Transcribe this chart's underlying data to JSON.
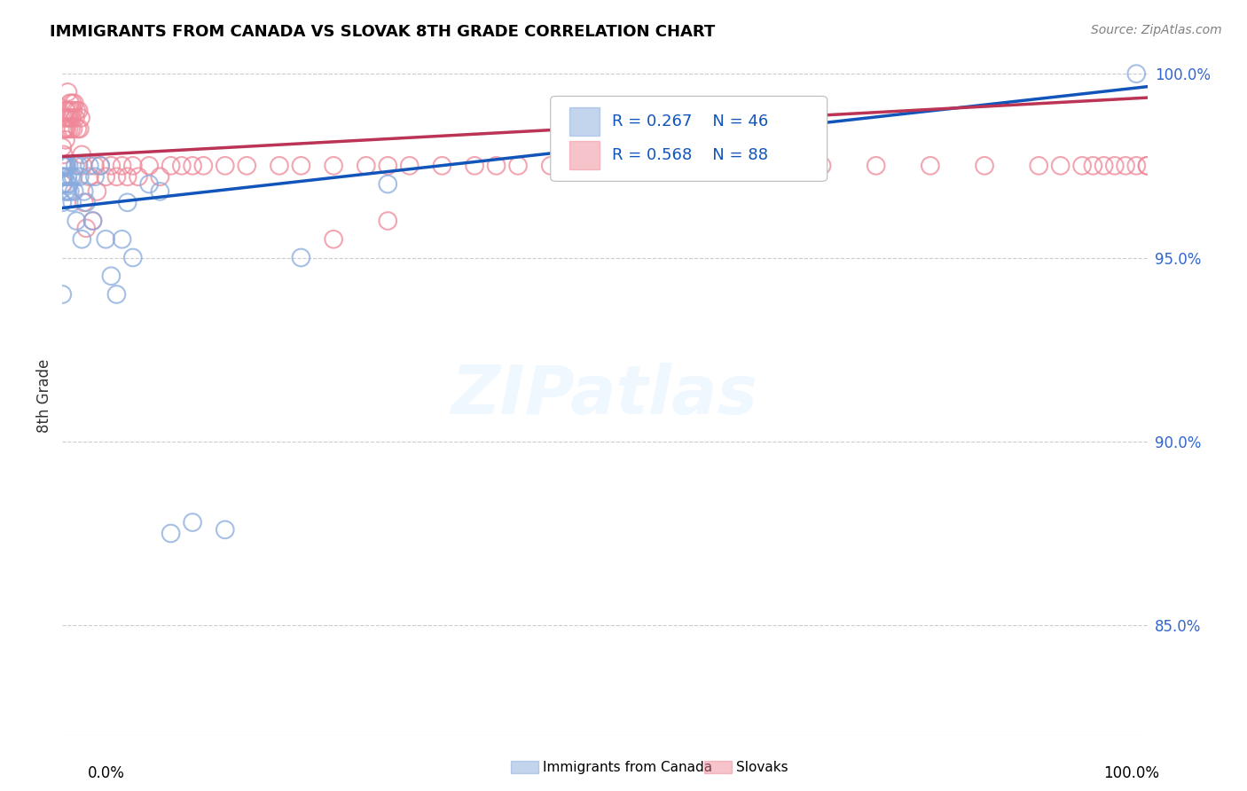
{
  "title": "IMMIGRANTS FROM CANADA VS SLOVAK 8TH GRADE CORRELATION CHART",
  "source": "Source: ZipAtlas.com",
  "ylabel": "8th Grade",
  "xlim": [
    0.0,
    1.0
  ],
  "ylim": [
    0.82,
    1.005
  ],
  "ytick_values": [
    0.85,
    0.9,
    0.95,
    1.0
  ],
  "ytick_labels": [
    "85.0%",
    "90.0%",
    "95.0%",
    "100.0%"
  ],
  "blue_R": "0.267",
  "blue_N": "46",
  "pink_R": "0.568",
  "pink_N": "88",
  "blue_color": "#88AADD",
  "pink_color": "#EE8899",
  "blue_line_color": "#1155BB",
  "pink_line_color": "#BB3355",
  "blue_line_start_y": 0.9635,
  "blue_line_end_y": 0.9965,
  "pink_line_start_y": 0.9775,
  "pink_line_end_y": 0.9935,
  "watermark_text": "ZIPatlas",
  "legend_blue_label": "Immigrants from Canada",
  "legend_pink_label": "Slovaks",
  "blue_scatter_x": [
    0.0,
    0.0,
    0.0,
    0.001,
    0.001,
    0.002,
    0.002,
    0.003,
    0.003,
    0.004,
    0.004,
    0.005,
    0.005,
    0.006,
    0.006,
    0.007,
    0.008,
    0.009,
    0.01,
    0.011,
    0.012,
    0.013,
    0.015,
    0.016,
    0.018,
    0.02,
    0.022,
    0.025,
    0.028,
    0.03,
    0.035,
    0.04,
    0.045,
    0.05,
    0.055,
    0.06,
    0.065,
    0.08,
    0.09,
    0.1,
    0.12,
    0.15,
    0.22,
    0.3,
    0.99,
    0.0
  ],
  "blue_scatter_y": [
    0.972,
    0.965,
    0.975,
    0.975,
    0.97,
    0.975,
    0.972,
    0.975,
    0.968,
    0.975,
    0.97,
    0.972,
    0.968,
    0.975,
    0.97,
    0.968,
    0.972,
    0.965,
    0.972,
    0.968,
    0.975,
    0.96,
    0.975,
    0.972,
    0.955,
    0.968,
    0.965,
    0.975,
    0.96,
    0.972,
    0.975,
    0.955,
    0.945,
    0.94,
    0.955,
    0.965,
    0.95,
    0.97,
    0.968,
    0.875,
    0.878,
    0.876,
    0.95,
    0.97,
    1.0,
    0.94
  ],
  "pink_scatter_x": [
    0.0,
    0.0,
    0.0,
    0.0,
    0.001,
    0.001,
    0.002,
    0.002,
    0.003,
    0.003,
    0.003,
    0.004,
    0.004,
    0.005,
    0.005,
    0.006,
    0.006,
    0.007,
    0.007,
    0.008,
    0.008,
    0.009,
    0.009,
    0.01,
    0.01,
    0.011,
    0.012,
    0.013,
    0.014,
    0.015,
    0.016,
    0.017,
    0.018,
    0.019,
    0.02,
    0.022,
    0.025,
    0.028,
    0.03,
    0.032,
    0.035,
    0.04,
    0.045,
    0.05,
    0.055,
    0.06,
    0.065,
    0.07,
    0.08,
    0.09,
    0.1,
    0.11,
    0.12,
    0.13,
    0.15,
    0.17,
    0.2,
    0.22,
    0.25,
    0.28,
    0.3,
    0.32,
    0.35,
    0.38,
    0.4,
    0.42,
    0.45,
    0.48,
    0.5,
    0.55,
    0.6,
    0.65,
    0.7,
    0.75,
    0.8,
    0.85,
    0.9,
    0.92,
    0.94,
    0.95,
    0.96,
    0.97,
    0.98,
    0.99,
    1.0,
    1.0,
    0.3,
    0.25
  ],
  "pink_scatter_y": [
    0.975,
    0.98,
    0.972,
    0.97,
    0.985,
    0.978,
    0.988,
    0.985,
    0.99,
    0.985,
    0.982,
    0.99,
    0.985,
    0.995,
    0.988,
    0.99,
    0.985,
    0.992,
    0.988,
    0.99,
    0.985,
    0.992,
    0.988,
    0.99,
    0.985,
    0.992,
    0.988,
    0.99,
    0.985,
    0.99,
    0.985,
    0.988,
    0.978,
    0.975,
    0.965,
    0.958,
    0.972,
    0.96,
    0.975,
    0.968,
    0.975,
    0.972,
    0.975,
    0.972,
    0.975,
    0.972,
    0.975,
    0.972,
    0.975,
    0.972,
    0.975,
    0.975,
    0.975,
    0.975,
    0.975,
    0.975,
    0.975,
    0.975,
    0.975,
    0.975,
    0.975,
    0.975,
    0.975,
    0.975,
    0.975,
    0.975,
    0.975,
    0.975,
    0.975,
    0.975,
    0.975,
    0.975,
    0.975,
    0.975,
    0.975,
    0.975,
    0.975,
    0.975,
    0.975,
    0.975,
    0.975,
    0.975,
    0.975,
    0.975,
    0.975,
    0.975,
    0.96,
    0.955
  ]
}
